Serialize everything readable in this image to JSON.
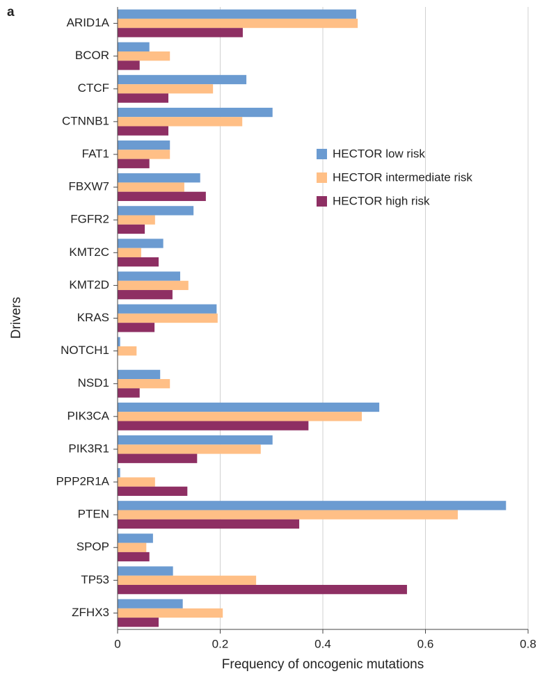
{
  "chart_data": {
    "type": "hbar",
    "panel_label": "a",
    "xlabel": "Frequency of oncogenic mutations",
    "ylabel": "Drivers",
    "categories": [
      "ARID1A",
      "BCOR",
      "CTCF",
      "CTNNB1",
      "FAT1",
      "FBXW7",
      "FGFR2",
      "KMT2C",
      "KMT2D",
      "KRAS",
      "NOTCH1",
      "NSD1",
      "PIK3CA",
      "PIK3R1",
      "PPP2R1A",
      "PTEN",
      "SPOP",
      "TP53",
      "ZFHX3"
    ],
    "series": [
      {
        "name": "HECTOR low risk",
        "color": "#6b9bd1",
        "values": [
          0.465,
          0.062,
          0.251,
          0.302,
          0.102,
          0.161,
          0.148,
          0.089,
          0.122,
          0.193,
          0.005,
          0.083,
          0.51,
          0.302,
          0.005,
          0.757,
          0.069,
          0.108,
          0.127
        ]
      },
      {
        "name": "HECTOR intermediate risk",
        "color": "#ffbf86",
        "values": [
          0.468,
          0.102,
          0.186,
          0.243,
          0.102,
          0.13,
          0.073,
          0.046,
          0.138,
          0.195,
          0.037,
          0.102,
          0.476,
          0.279,
          0.073,
          0.663,
          0.056,
          0.27,
          0.205
        ]
      },
      {
        "name": "HECTOR high risk",
        "color": "#8e2f63",
        "values": [
          0.244,
          0.043,
          0.099,
          0.099,
          0.062,
          0.172,
          0.053,
          0.08,
          0.107,
          0.072,
          0,
          0.043,
          0.372,
          0.155,
          0.136,
          0.354,
          0.062,
          0.564,
          0.08
        ]
      }
    ],
    "xlim": [
      0,
      0.8
    ],
    "xticks": [
      0,
      0.2,
      0.4,
      0.6,
      0.8
    ],
    "grid": true,
    "legend": "upper right"
  }
}
